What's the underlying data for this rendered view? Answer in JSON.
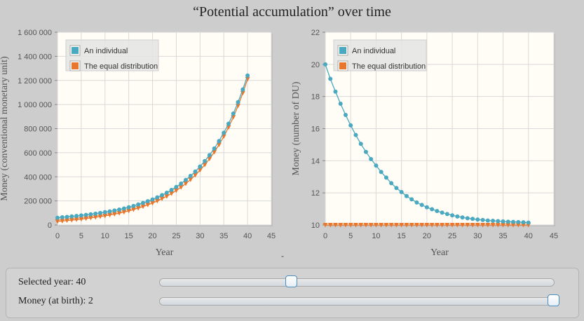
{
  "title": "“Potential accumulation” over time",
  "colors": {
    "individual": "#4aa9c0",
    "equal": "#e8762d",
    "plot_bg": "#fffdf5",
    "grid": "#d9d9d9"
  },
  "chart_data": [
    {
      "type": "line",
      "xlabel": "Year",
      "ylabel": "Money (conventional monetary unit)",
      "xlim": [
        0,
        45
      ],
      "ylim": [
        0,
        1600000
      ],
      "xticks": [
        "0",
        "5",
        "10",
        "15",
        "20",
        "25",
        "30",
        "35",
        "40",
        "45"
      ],
      "yticks": [
        "0",
        "200 000",
        "400 000",
        "600 000",
        "800 000",
        "1 000 000",
        "1 200 000",
        "1 400 000",
        "1 600 000"
      ],
      "legend": "top-left",
      "x": [
        0,
        1,
        2,
        3,
        4,
        5,
        6,
        7,
        8,
        9,
        10,
        11,
        12,
        13,
        14,
        15,
        16,
        17,
        18,
        19,
        20,
        21,
        22,
        23,
        24,
        25,
        26,
        27,
        28,
        29,
        30,
        31,
        32,
        33,
        34,
        35,
        36,
        37,
        38,
        39,
        40
      ],
      "series": [
        {
          "name": "An individual",
          "marker": "circle",
          "values": [
            60000,
            64000,
            67000,
            71000,
            75000,
            79000,
            84000,
            89000,
            94000,
            100000,
            106000,
            113000,
            120000,
            128000,
            137000,
            147000,
            158000,
            170000,
            183000,
            197000,
            212000,
            229000,
            248000,
            268000,
            291000,
            316000,
            343000,
            374000,
            407000,
            444000,
            485000,
            530000,
            580000,
            635000,
            697000,
            765000,
            841000,
            925000,
            1020000,
            1125000,
            1241000
          ]
        },
        {
          "name": "The equal distribution",
          "marker": "triangle",
          "values": [
            30000,
            33000,
            37000,
            41000,
            45000,
            49000,
            54000,
            59000,
            64000,
            70000,
            76000,
            83000,
            90000,
            98000,
            107000,
            117000,
            128000,
            140000,
            153000,
            167000,
            182000,
            199000,
            218000,
            238000,
            261000,
            286000,
            313000,
            344000,
            377000,
            414000,
            455000,
            500000,
            550000,
            605000,
            667000,
            735000,
            811000,
            895000,
            990000,
            1095000,
            1211000
          ]
        }
      ]
    },
    {
      "type": "line",
      "xlabel": "Year",
      "ylabel": "Money (number of DU)",
      "xlim": [
        0,
        45
      ],
      "ylim": [
        10,
        22
      ],
      "xticks": [
        "0",
        "5",
        "10",
        "15",
        "20",
        "25",
        "30",
        "35",
        "40",
        "45"
      ],
      "yticks": [
        "10",
        "12",
        "14",
        "16",
        "18",
        "20",
        "22"
      ],
      "legend": "top-left",
      "x": [
        0,
        1,
        2,
        3,
        4,
        5,
        6,
        7,
        8,
        9,
        10,
        11,
        12,
        13,
        14,
        15,
        16,
        17,
        18,
        19,
        20,
        21,
        22,
        23,
        24,
        25,
        26,
        27,
        28,
        29,
        30,
        31,
        32,
        33,
        34,
        35,
        36,
        37,
        38,
        39,
        40
      ],
      "series": [
        {
          "name": "An individual",
          "marker": "circle",
          "values": [
            20,
            19.1,
            18.3,
            17.55,
            16.85,
            16.2,
            15.6,
            15.05,
            14.55,
            14.1,
            13.7,
            13.3,
            12.95,
            12.6,
            12.3,
            12.05,
            11.8,
            11.6,
            11.4,
            11.25,
            11.1,
            10.98,
            10.87,
            10.77,
            10.68,
            10.6,
            10.53,
            10.47,
            10.42,
            10.38,
            10.34,
            10.31,
            10.28,
            10.26,
            10.24,
            10.22,
            10.2,
            10.19,
            10.18,
            10.17,
            10.15
          ]
        },
        {
          "name": "The equal distribution",
          "marker": "triangle",
          "values": [
            10,
            10,
            10,
            10,
            10,
            10,
            10,
            10,
            10,
            10,
            10,
            10,
            10,
            10,
            10,
            10,
            10,
            10,
            10,
            10,
            10,
            10,
            10,
            10,
            10,
            10,
            10,
            10,
            10,
            10,
            10,
            10,
            10,
            10,
            10,
            10,
            10,
            10,
            10,
            10,
            10
          ]
        }
      ]
    }
  ],
  "separator_text": "-",
  "controls": {
    "year_label": "Selected year: 40",
    "year_value": 0.335,
    "birth_label": "Money (at birth): 2",
    "birth_value": 1.0
  }
}
